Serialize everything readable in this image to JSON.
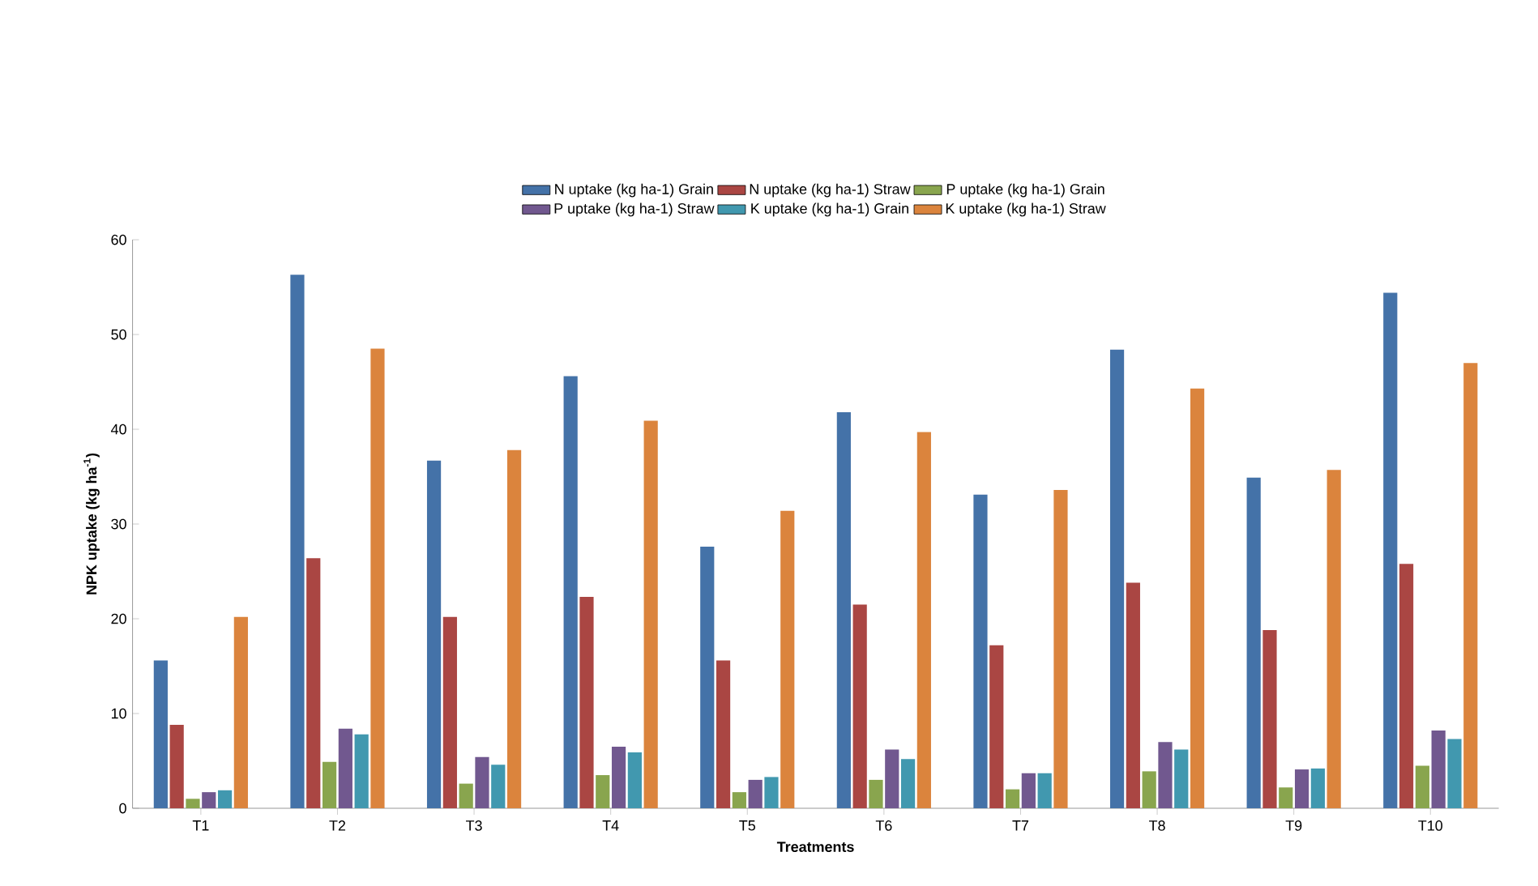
{
  "chart_data": {
    "type": "bar",
    "xlabel": "Treatments",
    "ylabel": "NPK uptake (kg ha$^{-1}$)",
    "categories": [
      "T1",
      "T2",
      "T3",
      "T4",
      "T5",
      "T6",
      "T7",
      "T8",
      "T9",
      "T10"
    ],
    "series": [
      {
        "name": "N uptake (kg ha-1) Grain",
        "color": "#4472a8",
        "values": [
          15.6,
          56.3,
          36.7,
          45.6,
          27.6,
          41.8,
          33.1,
          48.4,
          34.9,
          54.4
        ]
      },
      {
        "name": "N uptake (kg ha-1) Straw",
        "color": "#aa4643",
        "values": [
          8.8,
          26.4,
          20.2,
          22.3,
          15.6,
          21.5,
          17.2,
          23.8,
          18.8,
          25.8
        ]
      },
      {
        "name": "P uptake (kg ha-1) Grain",
        "color": "#89a54e",
        "values": [
          1.0,
          4.9,
          2.6,
          3.5,
          1.7,
          3.0,
          2.0,
          3.9,
          2.2,
          4.5
        ]
      },
      {
        "name": "P uptake (kg ha-1) Straw",
        "color": "#71588f",
        "values": [
          1.7,
          8.4,
          5.4,
          6.5,
          3.0,
          6.2,
          3.7,
          7.0,
          4.1,
          8.2
        ]
      },
      {
        "name": "K uptake (kg ha-1) Grain",
        "color": "#4198af",
        "values": [
          1.9,
          7.8,
          4.6,
          5.9,
          3.3,
          5.2,
          3.7,
          6.2,
          4.2,
          7.3
        ]
      },
      {
        "name": "K uptake (kg ha-1) Straw",
        "color": "#db843d",
        "values": [
          20.2,
          48.5,
          37.8,
          40.9,
          31.4,
          39.7,
          33.6,
          44.3,
          35.7,
          47.0
        ]
      }
    ],
    "ylim": [
      0,
      60
    ],
    "yticks": [
      0,
      10,
      20,
      30,
      40,
      50,
      60
    ],
    "legend": "top"
  }
}
